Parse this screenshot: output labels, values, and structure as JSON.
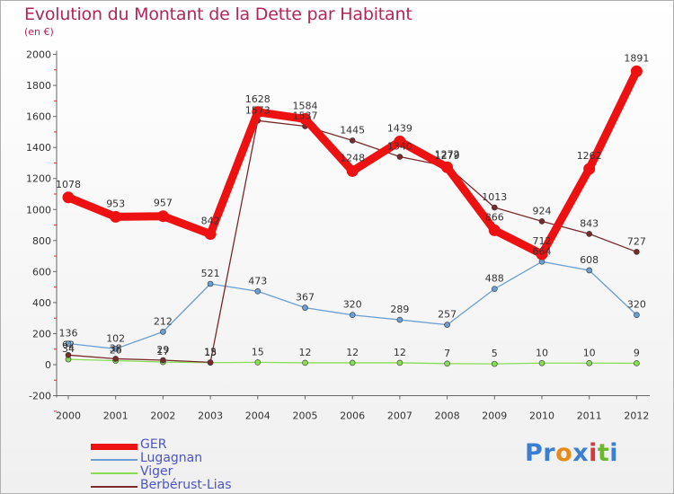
{
  "chart_data": {
    "type": "line",
    "title": "Evolution du Montant de la Dette par Habitant",
    "subtitle": "(en €)",
    "x": [
      "2000",
      "2001",
      "2002",
      "2003",
      "2004",
      "2005",
      "2006",
      "2007",
      "2008",
      "2009",
      "2010",
      "2011",
      "2012"
    ],
    "ylim": [
      -200,
      2000
    ],
    "yticks": [
      "-200",
      "0",
      "200",
      "400",
      "600",
      "800",
      "1000",
      "1200",
      "1400",
      "1600",
      "1800",
      "2000"
    ],
    "grid": false,
    "legend": "bottom-left",
    "series": [
      {
        "name": "GER",
        "color": "#ee1111",
        "values": [
          1078,
          953,
          957,
          842,
          1628,
          1584,
          1248,
          1439,
          1272,
          866,
          712,
          1262,
          1891
        ]
      },
      {
        "name": "Lugagnan",
        "color": "#6b9fd4",
        "values": [
          136,
          102,
          212,
          521,
          473,
          367,
          320,
          289,
          257,
          488,
          664,
          608,
          320
        ]
      },
      {
        "name": "Viger",
        "color": "#88dd55",
        "values": [
          34,
          26,
          17,
          13,
          15,
          12,
          12,
          12,
          7,
          5,
          10,
          10,
          9
        ]
      },
      {
        "name": "Berbérust-Lias",
        "color": "#7a2a2a",
        "values": [
          62,
          38,
          29,
          15,
          1573,
          1537,
          1445,
          1340,
          1279,
          1013,
          924,
          843,
          727
        ]
      }
    ]
  },
  "logo": {
    "text": "Proxiti",
    "letters": [
      "P",
      "r",
      "o",
      "x",
      "i",
      "t",
      "i"
    ],
    "colors": [
      "#3a7fd4",
      "#3a7fd4",
      "#e88a1a",
      "#3a7fd4",
      "#d43a3a",
      "#6ab82c",
      "#3a7fd4"
    ]
  }
}
